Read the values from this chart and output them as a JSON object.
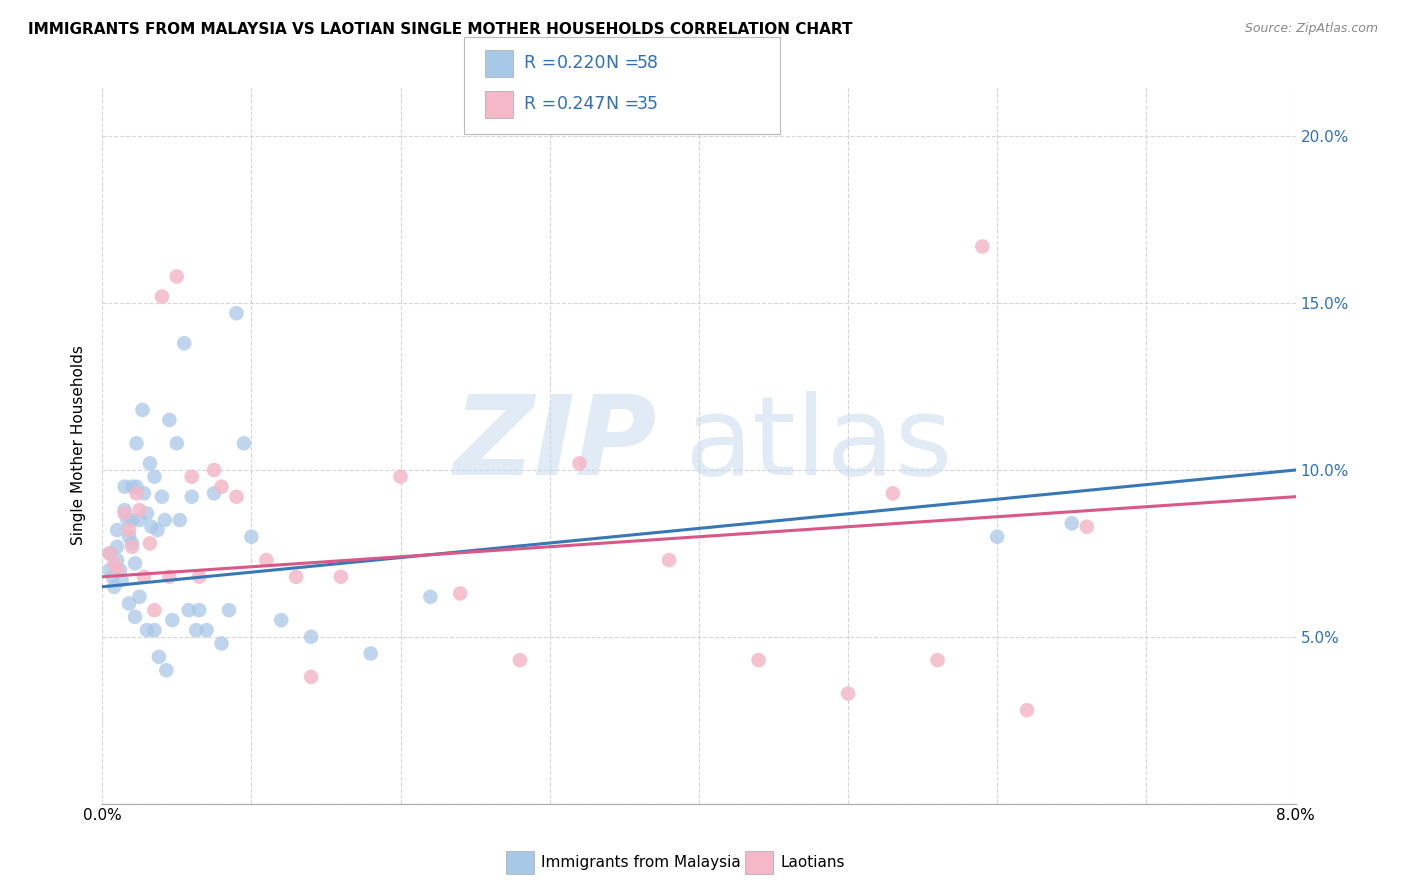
{
  "title": "IMMIGRANTS FROM MALAYSIA VS LAOTIAN SINGLE MOTHER HOUSEHOLDS CORRELATION CHART",
  "source": "Source: ZipAtlas.com",
  "ylabel": "Single Mother Households",
  "xlim": [
    0.0,
    0.08
  ],
  "ylim": [
    0.0,
    0.215
  ],
  "R_blue": 0.22,
  "N_blue": 58,
  "R_pink": 0.247,
  "N_pink": 35,
  "blue_color": "#a8c8e8",
  "pink_color": "#f4b8c8",
  "trendline_blue": "#3878b4",
  "trendline_pink": "#d85888",
  "legend_text_color": "#3070b8",
  "blue_x": [
    0.0005,
    0.0005,
    0.0007,
    0.0008,
    0.001,
    0.001,
    0.001,
    0.0012,
    0.0013,
    0.0015,
    0.0015,
    0.0017,
    0.0018,
    0.0018,
    0.002,
    0.002,
    0.002,
    0.0022,
    0.0022,
    0.0023,
    0.0023,
    0.0025,
    0.0025,
    0.0027,
    0.0028,
    0.003,
    0.003,
    0.0032,
    0.0033,
    0.0035,
    0.0035,
    0.0037,
    0.0038,
    0.004,
    0.0042,
    0.0043,
    0.0045,
    0.0047,
    0.005,
    0.0052,
    0.0055,
    0.0058,
    0.006,
    0.0063,
    0.0065,
    0.007,
    0.0075,
    0.008,
    0.0085,
    0.009,
    0.0095,
    0.01,
    0.012,
    0.014,
    0.018,
    0.022,
    0.06,
    0.065
  ],
  "blue_y": [
    0.075,
    0.07,
    0.068,
    0.065,
    0.082,
    0.077,
    0.073,
    0.07,
    0.067,
    0.095,
    0.088,
    0.085,
    0.08,
    0.06,
    0.095,
    0.085,
    0.078,
    0.072,
    0.056,
    0.108,
    0.095,
    0.085,
    0.062,
    0.118,
    0.093,
    0.087,
    0.052,
    0.102,
    0.083,
    0.052,
    0.098,
    0.082,
    0.044,
    0.092,
    0.085,
    0.04,
    0.115,
    0.055,
    0.108,
    0.085,
    0.138,
    0.058,
    0.092,
    0.052,
    0.058,
    0.052,
    0.093,
    0.048,
    0.058,
    0.147,
    0.108,
    0.08,
    0.055,
    0.05,
    0.045,
    0.062,
    0.08,
    0.084
  ],
  "pink_x": [
    0.0005,
    0.0008,
    0.001,
    0.0015,
    0.0018,
    0.002,
    0.0023,
    0.0025,
    0.0028,
    0.0032,
    0.0035,
    0.004,
    0.0045,
    0.005,
    0.006,
    0.0065,
    0.0075,
    0.008,
    0.009,
    0.011,
    0.013,
    0.014,
    0.016,
    0.02,
    0.024,
    0.028,
    0.032,
    0.038,
    0.044,
    0.05,
    0.053,
    0.056,
    0.059,
    0.062,
    0.066
  ],
  "pink_y": [
    0.075,
    0.072,
    0.07,
    0.087,
    0.082,
    0.077,
    0.093,
    0.088,
    0.068,
    0.078,
    0.058,
    0.152,
    0.068,
    0.158,
    0.098,
    0.068,
    0.1,
    0.095,
    0.092,
    0.073,
    0.068,
    0.038,
    0.068,
    0.098,
    0.063,
    0.043,
    0.102,
    0.073,
    0.043,
    0.033,
    0.093,
    0.043,
    0.167,
    0.028,
    0.083
  ]
}
